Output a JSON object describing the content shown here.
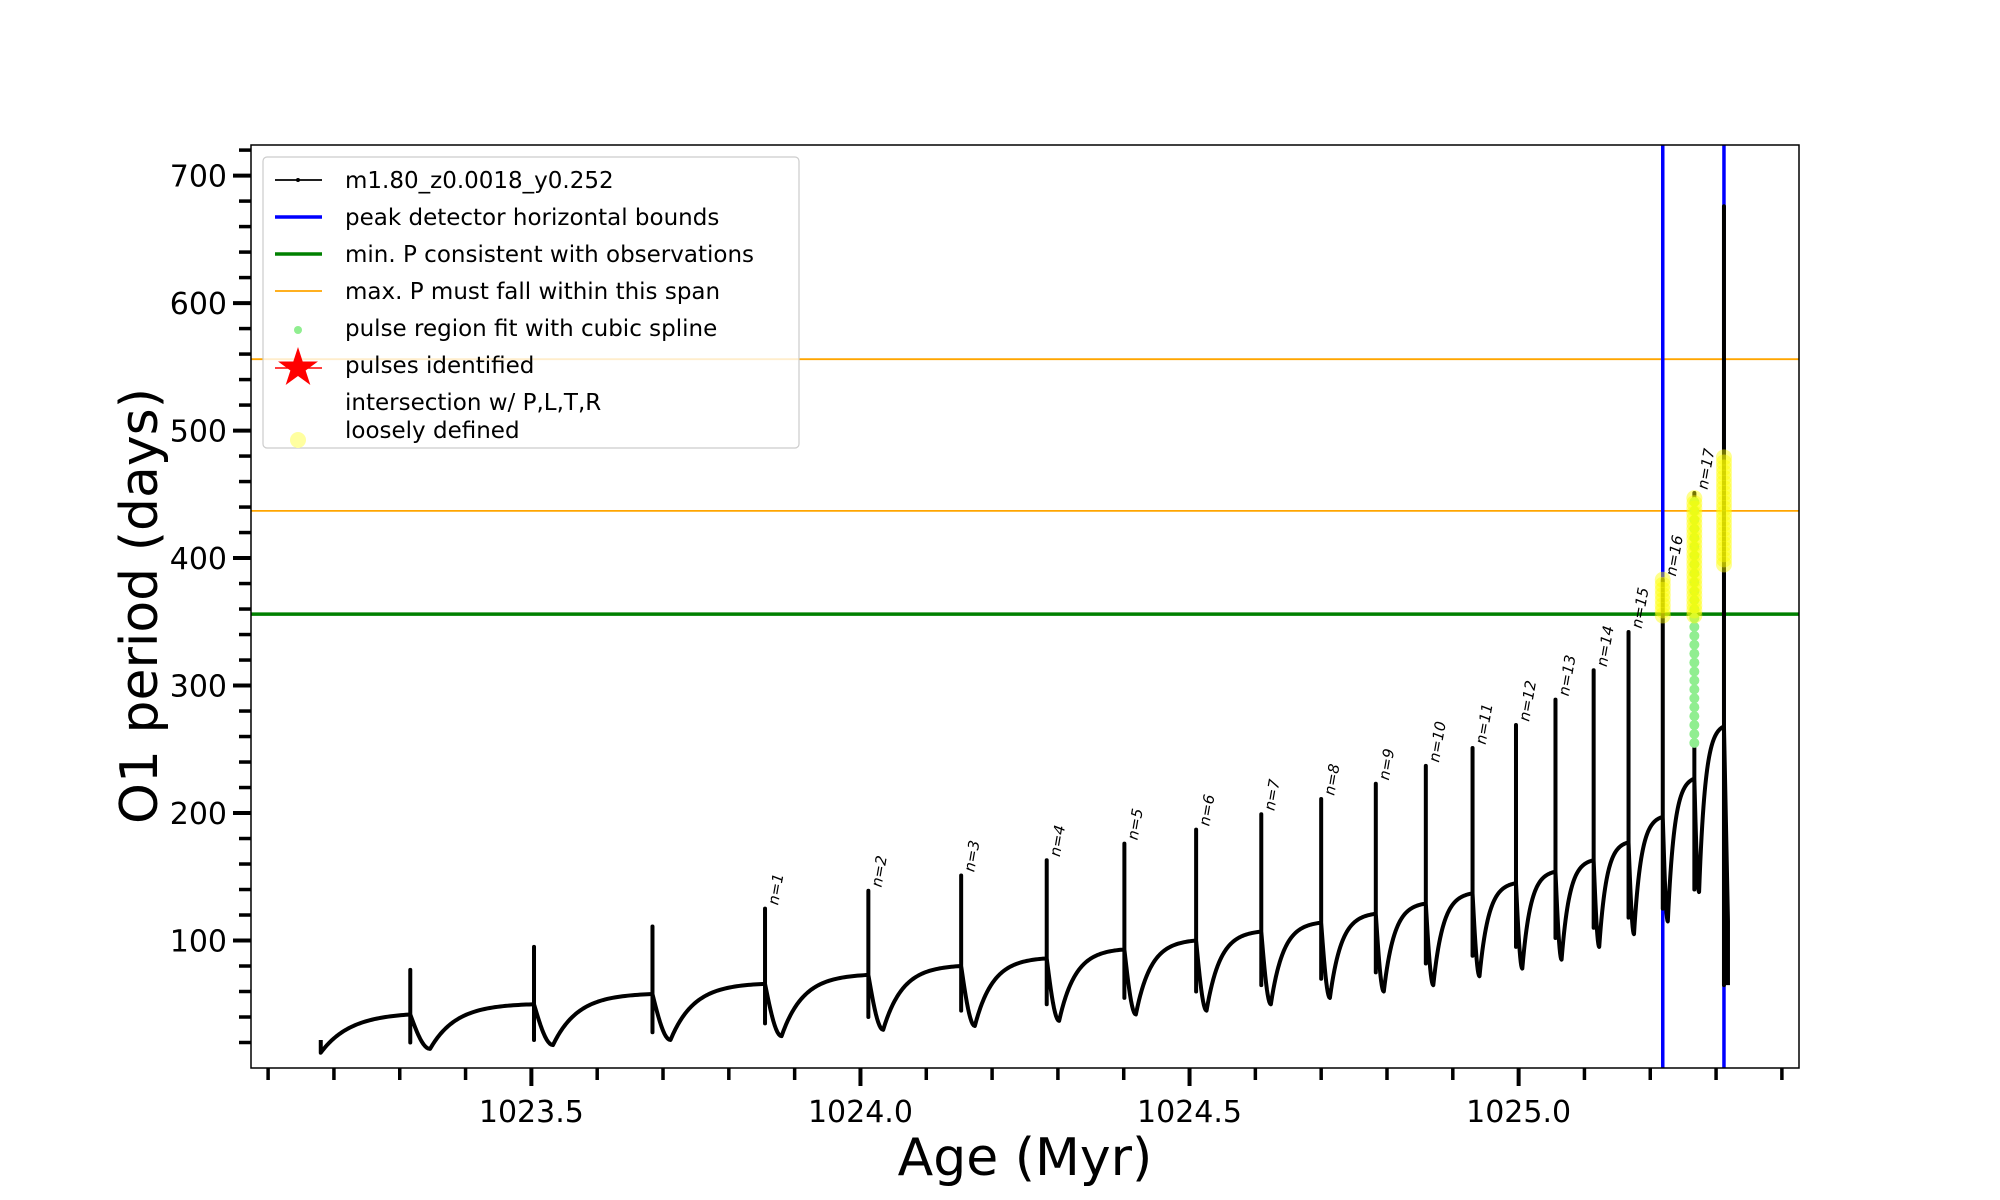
{
  "chart_data": {
    "type": "line",
    "xlabel": "Age (Myr)",
    "ylabel": "O1 period (days)",
    "xlim": [
      1023.074,
      1025.426
    ],
    "ylim": [
      0,
      724
    ],
    "x_ticks": [
      1023.5,
      1024.0,
      1024.5,
      1025.0
    ],
    "x_tick_labels": [
      "1023.5",
      "1024.0",
      "1024.5",
      "1025.0"
    ],
    "y_ticks": [
      100,
      200,
      300,
      400,
      500,
      600,
      700
    ],
    "y_tick_labels": [
      "100",
      "200",
      "300",
      "400",
      "500",
      "600",
      "700"
    ],
    "grid": false,
    "legend_placement": "upper-left",
    "legend": [
      {
        "label": "m1.80_z0.0018_y0.252",
        "kind": "line-dot",
        "color": "#000000"
      },
      {
        "label": "peak detector horizontal bounds",
        "kind": "thick-line",
        "color": "#0000ff"
      },
      {
        "label": "min. P consistent with observations",
        "kind": "thick-line",
        "color": "#008000"
      },
      {
        "label": "max. P must fall within this span",
        "kind": "thin-line",
        "color": "#ffa500"
      },
      {
        "label": "pulse region fit with cubic spline",
        "kind": "dot",
        "color": "#90ee90"
      },
      {
        "label": "pulses identified",
        "kind": "star",
        "color": "#ff0000"
      },
      {
        "label": "intersection w/ P,L,T,R",
        "label2": "loosely defined",
        "kind": "circle",
        "color": "#ffffa0"
      }
    ],
    "series": {
      "name": "m1.80_z0.0018_y0.252",
      "start": {
        "age": 1023.18,
        "value": 12
      },
      "pulses": [
        {
          "age": 1023.316,
          "pre": 42,
          "peak": 77,
          "low": 20,
          "min": 15,
          "label": ""
        },
        {
          "age": 1023.504,
          "pre": 50,
          "peak": 95,
          "low": 22,
          "min": 18,
          "label": ""
        },
        {
          "age": 1023.684,
          "pre": 58,
          "peak": 111,
          "low": 28,
          "min": 22,
          "label": ""
        },
        {
          "age": 1023.855,
          "pre": 66,
          "peak": 125,
          "low": 35,
          "min": 25,
          "label": "n=1"
        },
        {
          "age": 1024.012,
          "pre": 73,
          "peak": 139,
          "low": 40,
          "min": 30,
          "label": "n=2"
        },
        {
          "age": 1024.153,
          "pre": 80,
          "peak": 151,
          "low": 45,
          "min": 33,
          "label": "n=3"
        },
        {
          "age": 1024.283,
          "pre": 86,
          "peak": 163,
          "low": 50,
          "min": 37,
          "label": "n=4"
        },
        {
          "age": 1024.401,
          "pre": 93,
          "peak": 176,
          "low": 55,
          "min": 42,
          "label": "n=5"
        },
        {
          "age": 1024.51,
          "pre": 100,
          "peak": 187,
          "low": 60,
          "min": 45,
          "label": "n=6"
        },
        {
          "age": 1024.609,
          "pre": 107,
          "peak": 199,
          "low": 65,
          "min": 50,
          "label": "n=7"
        },
        {
          "age": 1024.7,
          "pre": 114,
          "peak": 211,
          "low": 70,
          "min": 55,
          "label": "n=8"
        },
        {
          "age": 1024.783,
          "pre": 121,
          "peak": 223,
          "low": 75,
          "min": 60,
          "label": "n=9"
        },
        {
          "age": 1024.859,
          "pre": 129,
          "peak": 237,
          "low": 82,
          "min": 65,
          "label": "n=10"
        },
        {
          "age": 1024.93,
          "pre": 137,
          "peak": 251,
          "low": 88,
          "min": 72,
          "label": "n=11"
        },
        {
          "age": 1024.996,
          "pre": 145,
          "peak": 269,
          "low": 95,
          "min": 78,
          "label": "n=12"
        },
        {
          "age": 1025.056,
          "pre": 154,
          "peak": 289,
          "low": 102,
          "min": 85,
          "label": "n=13"
        },
        {
          "age": 1025.114,
          "pre": 163,
          "peak": 312,
          "low": 110,
          "min": 95,
          "label": "n=14"
        },
        {
          "age": 1025.167,
          "pre": 177,
          "peak": 342,
          "low": 118,
          "min": 105,
          "label": "n=15"
        },
        {
          "age": 1025.219,
          "pre": 197,
          "peak": 383,
          "low": 125,
          "min": 115,
          "label": "n=16"
        },
        {
          "age": 1025.267,
          "pre": 227,
          "peak": 451,
          "low": 140,
          "min": 138,
          "label": "n=17"
        },
        {
          "age": 1025.312,
          "pre": 268,
          "peak": 676,
          "low": 65,
          "min": 65,
          "label": ""
        }
      ]
    },
    "vertical_lines": [
      {
        "name": "peak detector horizontal bound",
        "age": 1025.219,
        "color": "#0000ff"
      },
      {
        "name": "peak detector horizontal bound",
        "age": 1025.312,
        "color": "#0000ff"
      }
    ],
    "horizontal_lines": [
      {
        "name": "min. P consistent with observations",
        "value": 356,
        "color": "#008000"
      },
      {
        "name": "max. P span lower",
        "value": 437,
        "color": "#ffa500"
      },
      {
        "name": "max. P span upper",
        "value": 556,
        "color": "#ffa500"
      }
    ],
    "spline_regions": [
      {
        "age": 1025.267,
        "from": 255,
        "to": 450
      }
    ],
    "loose_regions": [
      {
        "age": 1025.219,
        "from": 355,
        "to": 385
      },
      {
        "age": 1025.267,
        "from": 355,
        "to": 450
      },
      {
        "age": 1025.312,
        "from": 395,
        "to": 480
      }
    ]
  }
}
